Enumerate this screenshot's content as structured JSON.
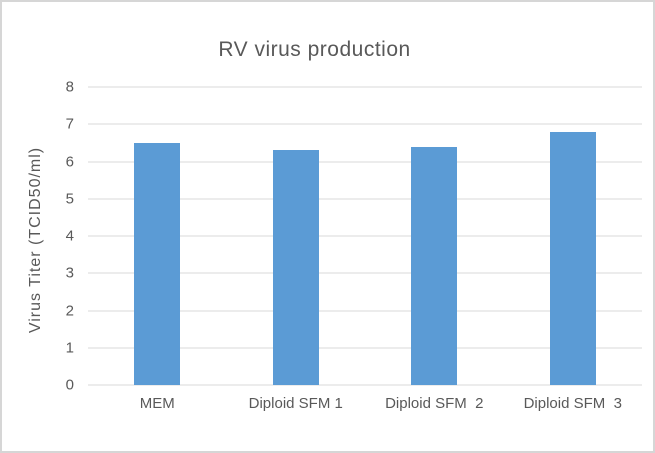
{
  "chart_data": {
    "type": "bar",
    "title": "RV virus production",
    "categories": [
      "MEM",
      "Diploid SFM 1",
      "Diploid SFM  2",
      "Diploid SFM  3"
    ],
    "values": [
      6.5,
      6.3,
      6.4,
      6.8
    ],
    "xlabel": "",
    "ylabel": "Virus Titer (TCID50/ml)",
    "ylim": [
      0,
      8
    ],
    "yticks": [
      0,
      1,
      2,
      3,
      4,
      5,
      6,
      7,
      8
    ],
    "grid": true,
    "legend_position": "none",
    "bar_color": "#5b9bd5",
    "gridline_color": "#d9d9d9",
    "axis_line_color": "#d9d9d9",
    "text_color": "#595959",
    "background_color": "#ffffff",
    "frame_border_color": "#d6d6d6"
  }
}
